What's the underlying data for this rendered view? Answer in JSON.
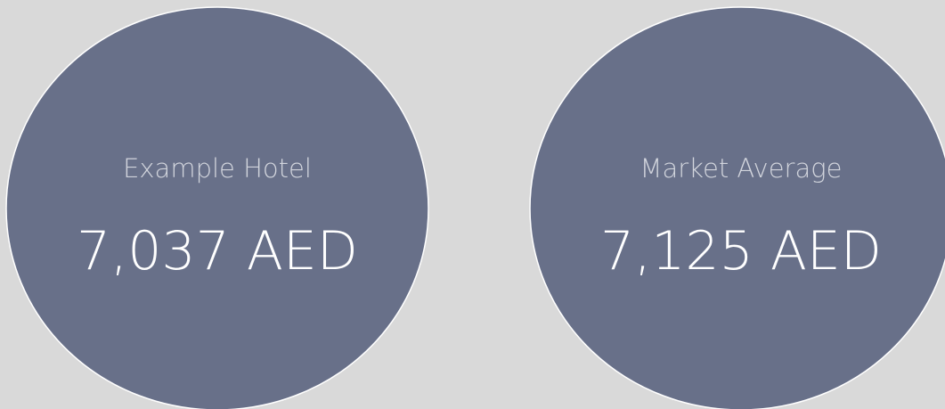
{
  "cards": [
    {
      "label": "Example Hotel",
      "value": "7,037 AED"
    },
    {
      "label": "Market Average",
      "value": "7,125 AED"
    }
  ]
}
